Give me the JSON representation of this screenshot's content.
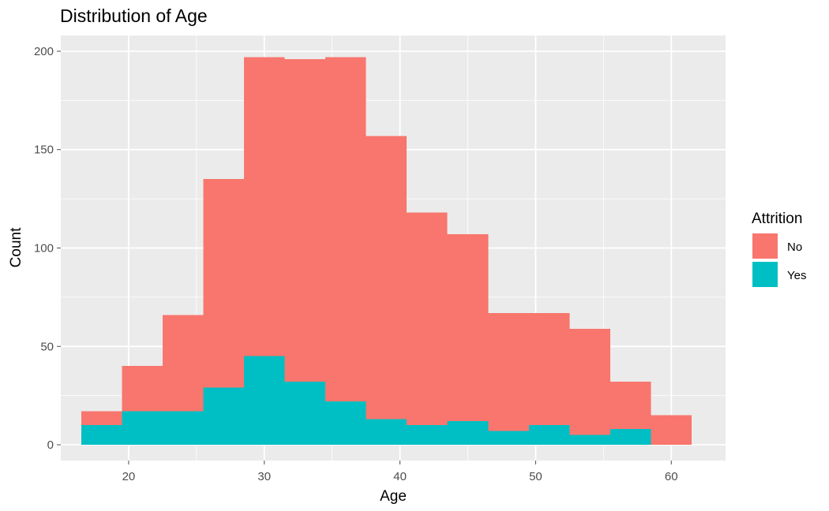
{
  "chart_data": {
    "type": "bar",
    "subtype": "stacked histogram",
    "title": "Distribution of Age",
    "xlabel": "Age",
    "ylabel": "Count",
    "xlim": [
      15,
      64
    ],
    "ylim": [
      -8,
      208
    ],
    "x_ticks": [
      20,
      30,
      40,
      50,
      60
    ],
    "y_ticks": [
      0,
      50,
      100,
      150,
      200
    ],
    "grid": true,
    "legend": {
      "title": "Attrition",
      "position": "right"
    },
    "bins": [
      {
        "from": 16.5,
        "to": 19.5
      },
      {
        "from": 19.5,
        "to": 22.5
      },
      {
        "from": 22.5,
        "to": 25.5
      },
      {
        "from": 25.5,
        "to": 28.5
      },
      {
        "from": 28.5,
        "to": 31.5
      },
      {
        "from": 31.5,
        "to": 34.5
      },
      {
        "from": 34.5,
        "to": 37.5
      },
      {
        "from": 37.5,
        "to": 40.5
      },
      {
        "from": 40.5,
        "to": 43.5
      },
      {
        "from": 43.5,
        "to": 46.5
      },
      {
        "from": 46.5,
        "to": 49.5
      },
      {
        "from": 49.5,
        "to": 52.5
      },
      {
        "from": 52.5,
        "to": 55.5
      },
      {
        "from": 55.5,
        "to": 58.5
      },
      {
        "from": 58.5,
        "to": 61.5
      }
    ],
    "series": [
      {
        "name": "Yes",
        "color": "#00BFC4",
        "values": [
          10,
          17,
          17,
          29,
          45,
          32,
          22,
          13,
          10,
          12,
          7,
          10,
          5,
          8,
          0
        ]
      },
      {
        "name": "No",
        "color": "#F8766D",
        "values": [
          7,
          23,
          49,
          106,
          152,
          164,
          175,
          144,
          108,
          95,
          60,
          57,
          54,
          24,
          15
        ]
      }
    ],
    "colors": {
      "panel": "#EBEBEB",
      "grid": "#FFFFFF",
      "tick": "#4D4D4D"
    }
  }
}
